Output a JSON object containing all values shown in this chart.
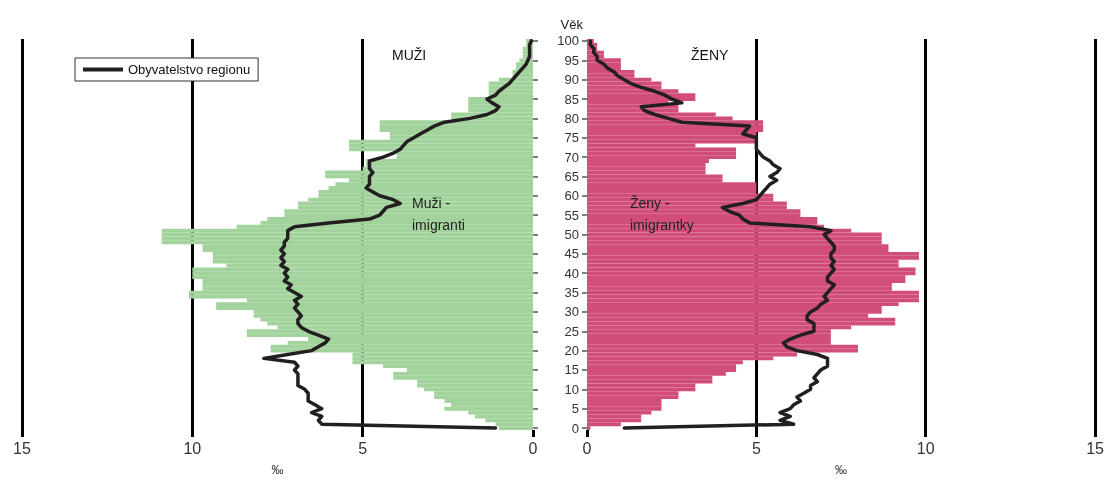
{
  "chart_data": [
    {
      "type": "bar",
      "orientation": "horizontal",
      "title": "MUŽI",
      "xlabel": "‰",
      "legend": "top left",
      "grid": "x",
      "tick_labels": "x",
      "xlim": [
        15,
        0
      ],
      "xticks": [
        0,
        5,
        10,
        15
      ],
      "categories": [
        "100",
        null,
        null,
        null,
        null,
        "95",
        null,
        null,
        null,
        null,
        "90",
        null,
        null,
        null,
        null,
        "85",
        null,
        null,
        null,
        null,
        "80",
        null,
        null,
        null,
        null,
        "75",
        null,
        null,
        null,
        null,
        "70",
        null,
        null,
        null,
        null,
        "65",
        null,
        null,
        null,
        null,
        "60",
        null,
        null,
        null,
        null,
        "55",
        null,
        null,
        null,
        null,
        "50",
        null,
        null,
        null,
        null,
        "45",
        null,
        null,
        null,
        null,
        "40",
        null,
        null,
        null,
        null,
        "35",
        null,
        null,
        null,
        null,
        "30",
        null,
        null,
        null,
        null,
        "25",
        null,
        null,
        null,
        null,
        "20",
        null,
        null,
        null,
        null,
        "15",
        null,
        null,
        null,
        null,
        "10",
        null,
        null,
        null,
        null,
        "5",
        null,
        null,
        null,
        null,
        "0"
      ],
      "series": [
        {
          "name": "Muži - imigranti",
          "color": "#a3d39c",
          "values": [
            0.2,
            0.2,
            0.3,
            0.3,
            0.3,
            0.4,
            0.5,
            0.5,
            0.6,
            0.6,
            1.0,
            1.3,
            1.3,
            1.3,
            1.3,
            1.9,
            1.9,
            1.9,
            1.9,
            2.4,
            2.4,
            4.5,
            4.5,
            4.5,
            4.2,
            4.2,
            5.4,
            5.4,
            5.4,
            4.0,
            4.0,
            4.9,
            4.9,
            5.0,
            6.1,
            6.1,
            5.4,
            5.8,
            6.0,
            6.3,
            6.3,
            6.6,
            6.9,
            6.9,
            7.3,
            7.3,
            7.8,
            8.0,
            8.7,
            10.9,
            10.9,
            10.9,
            10.9,
            9.7,
            9.7,
            9.4,
            9.4,
            9.4,
            9.0,
            10.0,
            10.0,
            10.0,
            9.7,
            9.7,
            9.7,
            10.1,
            10.1,
            8.4,
            9.3,
            9.3,
            8.2,
            8.2,
            8.0,
            7.8,
            7.5,
            8.4,
            8.4,
            6.6,
            7.2,
            7.7,
            7.7,
            5.3,
            5.3,
            5.3,
            4.4,
            3.7,
            4.1,
            4.1,
            3.4,
            3.4,
            3.2,
            2.9,
            2.9,
            2.6,
            2.4,
            2.6,
            1.9,
            1.7,
            1.4,
            1.1,
            1.0
          ]
        },
        {
          "type": "line",
          "name": "Obyvatelstvo regionu",
          "color": "#231f20",
          "values": [
            0.05,
            0.1,
            0.1,
            0.1,
            0.1,
            0.15,
            0.2,
            0.3,
            0.4,
            0.5,
            0.6,
            0.7,
            0.85,
            1.0,
            1.1,
            1.35,
            1.2,
            1.0,
            1.1,
            1.35,
            1.85,
            2.6,
            2.9,
            3.1,
            3.3,
            3.5,
            3.7,
            3.8,
            3.9,
            4.1,
            4.4,
            4.8,
            4.8,
            4.8,
            4.7,
            4.8,
            4.8,
            4.8,
            4.9,
            4.7,
            4.5,
            4.1,
            3.9,
            4.3,
            4.4,
            4.5,
            4.8,
            6.0,
            7.0,
            7.2,
            7.2,
            7.2,
            7.3,
            7.3,
            7.4,
            7.3,
            7.4,
            7.3,
            7.4,
            7.2,
            7.3,
            7.2,
            7.3,
            7.1,
            7.2,
            7.0,
            6.8,
            7.0,
            6.9,
            7.0,
            6.9,
            6.8,
            6.9,
            6.9,
            6.8,
            6.6,
            6.3,
            6.0,
            6.1,
            6.3,
            6.5,
            7.2,
            7.9,
            7.0,
            6.9,
            7.0,
            6.9,
            6.9,
            6.9,
            6.9,
            6.7,
            6.6,
            6.6,
            6.6,
            6.4,
            6.2,
            6.5,
            6.2,
            6.3,
            6.2,
            1.1
          ]
        }
      ]
    },
    {
      "type": "bar",
      "orientation": "horizontal",
      "title": "ŽENY",
      "ylabel": "Věk",
      "xlabel": "‰",
      "grid": "x",
      "xlim": [
        0,
        15
      ],
      "xticks": [
        0,
        5,
        10,
        15
      ],
      "categories": [
        "100",
        null,
        null,
        null,
        null,
        "95",
        null,
        null,
        null,
        null,
        "90",
        null,
        null,
        null,
        null,
        "85",
        null,
        null,
        null,
        null,
        "80",
        null,
        null,
        null,
        null,
        "75",
        null,
        null,
        null,
        null,
        "70",
        null,
        null,
        null,
        null,
        "65",
        null,
        null,
        null,
        null,
        "60",
        null,
        null,
        null,
        null,
        "55",
        null,
        null,
        null,
        null,
        "50",
        null,
        null,
        null,
        null,
        "45",
        null,
        null,
        null,
        null,
        "40",
        null,
        null,
        null,
        null,
        "35",
        null,
        null,
        null,
        null,
        "30",
        null,
        null,
        null,
        null,
        "25",
        null,
        null,
        null,
        null,
        "20",
        null,
        null,
        null,
        null,
        "15",
        null,
        null,
        null,
        null,
        "10",
        null,
        null,
        null,
        null,
        "5",
        null,
        null,
        null,
        null,
        "0"
      ],
      "series": [
        {
          "name": "Ženy - imigrantky",
          "color": "#d14d7b",
          "values": [
            0.2,
            0.3,
            0.3,
            0.5,
            0.5,
            1.0,
            1.0,
            1.0,
            1.4,
            1.4,
            1.9,
            2.2,
            2.2,
            2.7,
            3.2,
            3.2,
            2.4,
            2.7,
            2.7,
            3.8,
            4.3,
            5.2,
            5.2,
            5.2,
            5.0,
            5.0,
            5.0,
            3.2,
            4.4,
            4.4,
            4.4,
            3.6,
            3.5,
            3.5,
            3.5,
            4.0,
            4.0,
            5.0,
            5.0,
            5.0,
            5.5,
            5.5,
            5.9,
            5.9,
            6.3,
            6.3,
            6.8,
            6.8,
            7.0,
            7.8,
            8.7,
            8.7,
            8.7,
            8.9,
            8.9,
            9.8,
            9.8,
            9.2,
            9.2,
            9.7,
            9.7,
            9.4,
            9.4,
            9.0,
            9.0,
            9.8,
            9.8,
            9.8,
            9.2,
            8.7,
            8.7,
            8.3,
            9.1,
            9.1,
            7.8,
            7.2,
            7.2,
            7.2,
            7.2,
            8.0,
            8.0,
            6.2,
            5.5,
            4.6,
            4.4,
            4.4,
            4.1,
            3.7,
            3.7,
            3.2,
            3.2,
            2.7,
            2.7,
            2.2,
            2.2,
            2.2,
            1.9,
            1.6,
            1.6,
            1.0,
            0.1
          ]
        },
        {
          "type": "line",
          "color": "#231f20",
          "values": [
            0.1,
            0.1,
            0.2,
            0.2,
            0.3,
            0.3,
            0.5,
            0.6,
            0.8,
            0.9,
            1.1,
            1.3,
            1.6,
            2.0,
            2.3,
            2.5,
            2.8,
            1.6,
            1.7,
            2.0,
            2.4,
            2.8,
            4.8,
            4.7,
            4.6,
            5.0,
            5.0,
            5.0,
            5.0,
            5.1,
            5.2,
            5.4,
            5.5,
            5.7,
            5.6,
            5.4,
            5.6,
            5.4,
            5.3,
            5.2,
            5.1,
            5.0,
            4.6,
            4.0,
            4.2,
            4.5,
            4.6,
            4.8,
            6.6,
            7.2,
            7.0,
            7.1,
            7.2,
            7.3,
            7.3,
            7.2,
            7.2,
            7.3,
            7.2,
            7.3,
            7.2,
            7.1,
            7.1,
            7.3,
            7.2,
            7.1,
            7.0,
            7.1,
            6.9,
            6.8,
            6.6,
            6.5,
            6.5,
            6.7,
            6.7,
            6.7,
            6.3,
            6.0,
            5.8,
            5.9,
            6.2,
            6.8,
            7.1,
            7.1,
            7.1,
            6.9,
            6.8,
            6.7,
            6.8,
            6.6,
            6.6,
            6.4,
            6.2,
            6.3,
            6.1,
            6.0,
            5.7,
            6.0,
            5.7,
            6.1,
            1.1
          ]
        }
      ]
    }
  ]
}
